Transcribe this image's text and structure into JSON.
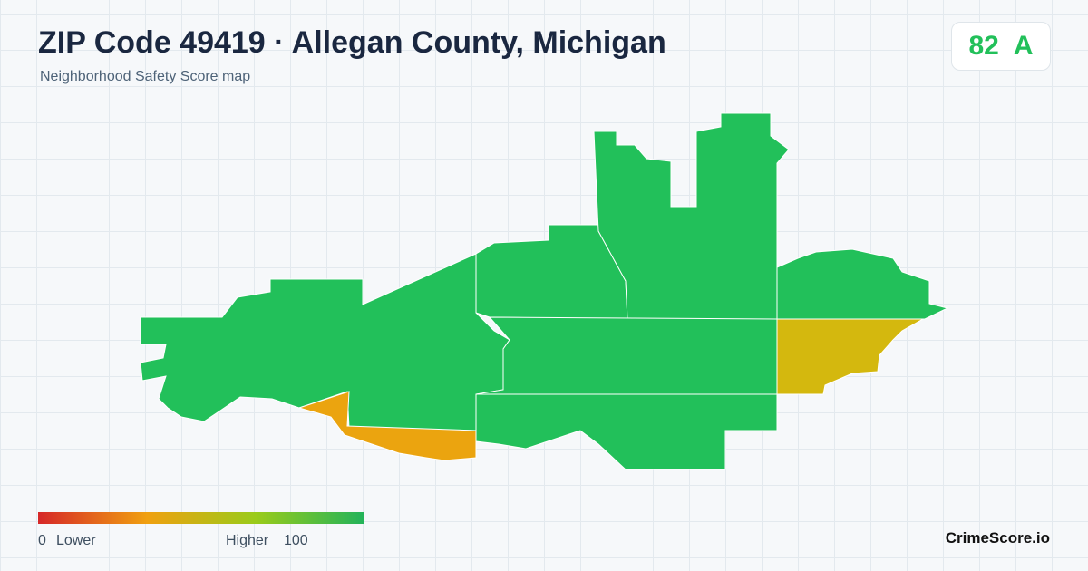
{
  "header": {
    "title": "ZIP Code 49419 · Allegan County, Michigan",
    "subtitle": "Neighborhood Safety Score map"
  },
  "score": {
    "value": "82",
    "grade": "A"
  },
  "legend": {
    "min": "0",
    "min_label": "Lower",
    "max_label": "Higher",
    "max": "100"
  },
  "footer": {
    "brand": "CrimeScore.io"
  }
}
